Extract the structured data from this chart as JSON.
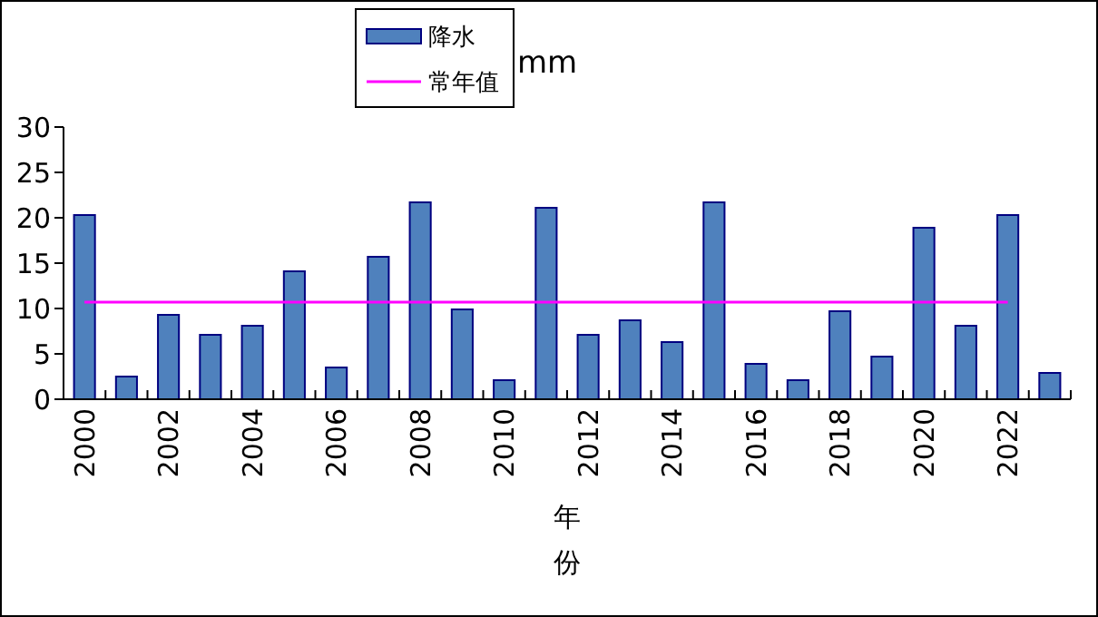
{
  "chart_data": {
    "type": "bar",
    "ylabel": "mm",
    "xlabel": "年份",
    "categories": [
      "2000",
      null,
      "2002",
      null,
      "2004",
      null,
      "2006",
      null,
      "2008",
      null,
      "2010",
      null,
      "2012",
      null,
      "2014",
      null,
      "2016",
      null,
      "2018",
      null,
      "2020",
      null,
      "2022",
      null
    ],
    "series": [
      {
        "name": "降水",
        "color": "#4f81bd",
        "values": [
          20.3,
          2.5,
          9.3,
          7.1,
          8.1,
          14.1,
          3.5,
          15.7,
          21.7,
          9.9,
          2.1,
          21.1,
          7.1,
          8.7,
          6.3,
          21.7,
          3.9,
          2.1,
          9.7,
          4.7,
          18.9,
          8.1,
          20.3,
          2.9
        ]
      },
      {
        "name": "常年值",
        "type": "line",
        "color": "#ff00ff",
        "values": [
          10.7,
          10.7,
          10.7,
          10.7,
          10.7,
          10.7,
          10.7,
          10.7,
          10.7,
          10.7,
          10.7,
          10.7,
          10.7,
          10.7,
          10.7,
          10.7,
          10.7,
          10.7,
          10.7,
          10.7,
          10.7,
          10.7,
          10.7,
          null
        ]
      }
    ],
    "ylim": [
      0,
      30
    ],
    "yticks": [
      0,
      5,
      10,
      15,
      20,
      25,
      30
    ],
    "grid": false,
    "legend": "top",
    "marker": "none"
  }
}
